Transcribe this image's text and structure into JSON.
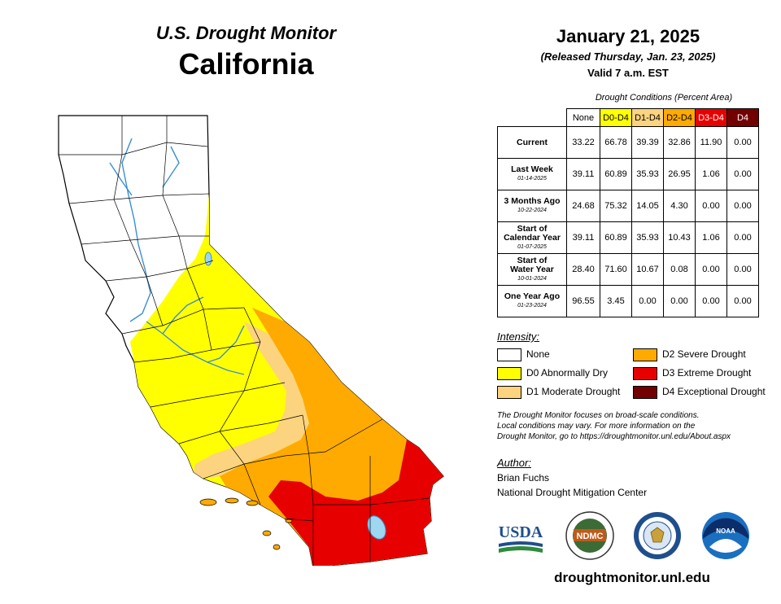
{
  "header": {
    "subtitle": "U.S. Drought Monitor",
    "state": "California",
    "date": "January 21, 2025",
    "released": "(Released Thursday, Jan. 23, 2025)",
    "valid": "Valid 7 a.m. EST"
  },
  "table": {
    "caption": "Drought Conditions (Percent Area)",
    "columns": [
      "None",
      "D0-D4",
      "D1-D4",
      "D2-D4",
      "D3-D4",
      "D4"
    ],
    "column_colors": [
      "#ffffff",
      "#ffff00",
      "#fcd37f",
      "#ffaa00",
      "#e60000",
      "#730000"
    ],
    "rows": [
      {
        "label": [
          "Current"
        ],
        "date": "",
        "values": [
          "33.22",
          "66.78",
          "39.39",
          "32.86",
          "11.90",
          "0.00"
        ]
      },
      {
        "label": [
          "Last Week"
        ],
        "date": "01-14-2025",
        "values": [
          "39.11",
          "60.89",
          "35.93",
          "26.95",
          "1.06",
          "0.00"
        ]
      },
      {
        "label": [
          "3 Months Ago"
        ],
        "date": "10-22-2024",
        "values": [
          "24.68",
          "75.32",
          "14.05",
          "4.30",
          "0.00",
          "0.00"
        ]
      },
      {
        "label": [
          "Start of",
          "Calendar Year"
        ],
        "date": "01-07-2025",
        "values": [
          "39.11",
          "60.89",
          "35.93",
          "10.43",
          "1.06",
          "0.00"
        ]
      },
      {
        "label": [
          "Start of",
          "Water Year"
        ],
        "date": "10-01-2024",
        "values": [
          "28.40",
          "71.60",
          "10.67",
          "0.08",
          "0.00",
          "0.00"
        ]
      },
      {
        "label": [
          "One Year Ago"
        ],
        "date": "01-23-2024",
        "values": [
          "96.55",
          "3.45",
          "0.00",
          "0.00",
          "0.00",
          "0.00"
        ]
      }
    ]
  },
  "intensity": {
    "title": "Intensity:",
    "items": [
      {
        "label": "None",
        "color": "#ffffff"
      },
      {
        "label": "D0 Abnormally Dry",
        "color": "#ffff00"
      },
      {
        "label": "D1 Moderate Drought",
        "color": "#fcd37f"
      },
      {
        "label": "D2 Severe Drought",
        "color": "#ffaa00"
      },
      {
        "label": "D3 Extreme Drought",
        "color": "#e60000"
      },
      {
        "label": "D4 Exceptional Drought",
        "color": "#730000"
      }
    ]
  },
  "note": [
    "The Drought Monitor focuses on broad-scale conditions.",
    "Local conditions may vary. For more information on the",
    "Drought Monitor, go to https://droughtmonitor.unl.edu/About.aspx"
  ],
  "author": {
    "title": "Author:",
    "name": "Brian Fuchs",
    "org": "National Drought Mitigation Center"
  },
  "logos": {
    "usda": "USDA",
    "ndmc": "NDMC",
    "noaa": "NOAA",
    "commerce": "commerce-seal-icon"
  },
  "footer_url": "droughtmonitor.unl.edu"
}
